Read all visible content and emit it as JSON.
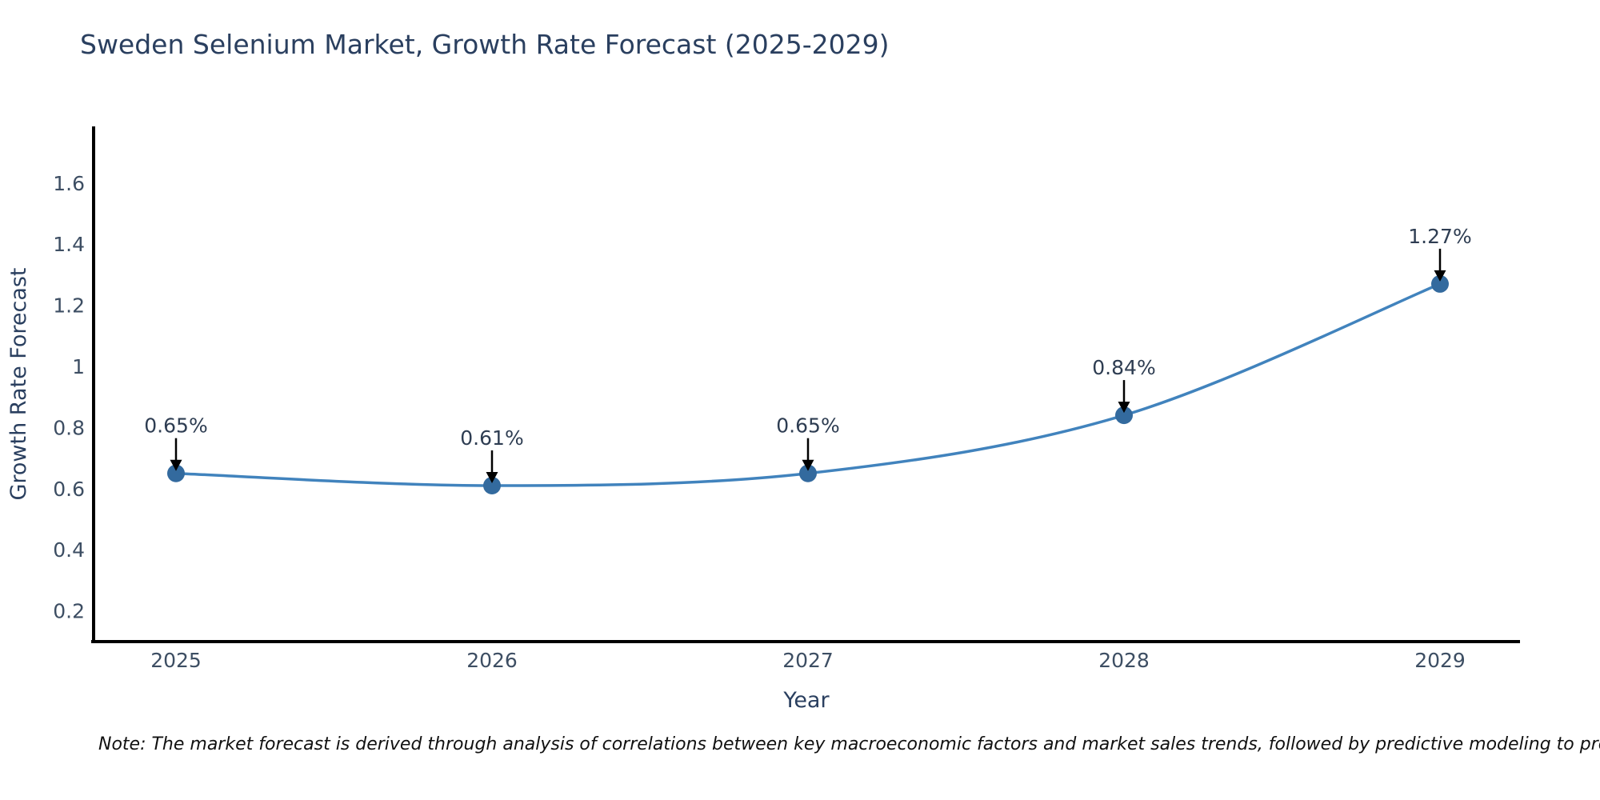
{
  "chart_data": {
    "type": "line",
    "title": "Sweden Selenium Market, Growth Rate Forecast (2025-2029)",
    "xlabel": "Year",
    "ylabel": "Growth Rate Forecast",
    "categories": [
      "2025",
      "2026",
      "2027",
      "2028",
      "2029"
    ],
    "series": [
      {
        "name": "Growth Rate Forecast",
        "values": [
          0.65,
          0.61,
          0.65,
          0.84,
          1.27
        ],
        "point_labels": [
          "0.65%",
          "0.61%",
          "0.65%",
          "0.84%",
          "1.27%"
        ]
      }
    ],
    "y_ticks": [
      0.2,
      0.4,
      0.6,
      0.8,
      1,
      1.2,
      1.4,
      1.6
    ],
    "y_tick_labels": [
      "0.2",
      "0.4",
      "0.6",
      "0.8",
      "1",
      "1.2",
      "1.4",
      "1.6"
    ],
    "ylim": [
      0.1,
      1.78
    ],
    "grid": false,
    "legend_position": "none",
    "line_shape": "spline",
    "colors": {
      "line": "#4183bd",
      "marker": "#336a9e",
      "arrow": "#000000",
      "axis": "#000000",
      "title": "#2a3f5f",
      "tick": "#3d4e63",
      "annotation": "#2e3d52",
      "background": "#ffffff"
    },
    "note": "Note: The market forecast is derived through analysis of correlations between key macroeconomic factors and market sales trends, followed by predictive modeling to project future sales"
  }
}
